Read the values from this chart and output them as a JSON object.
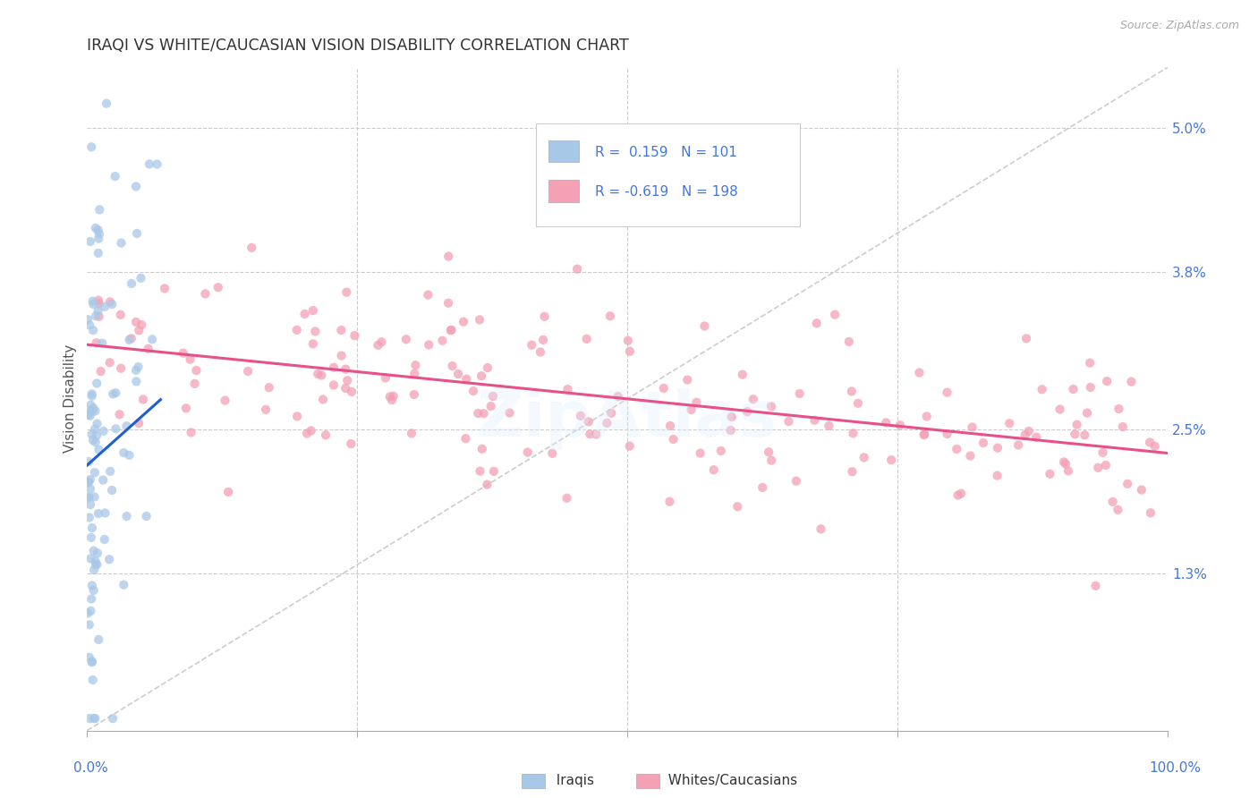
{
  "title": "IRAQI VS WHITE/CAUCASIAN VISION DISABILITY CORRELATION CHART",
  "source": "Source: ZipAtlas.com",
  "ylabel": "Vision Disability",
  "ytick_labels": [
    "1.3%",
    "2.5%",
    "3.8%",
    "5.0%"
  ],
  "ytick_values": [
    0.013,
    0.025,
    0.038,
    0.05
  ],
  "xlim": [
    0.0,
    1.0
  ],
  "ylim": [
    0.0,
    0.055
  ],
  "legend_label1": "Iraqis",
  "legend_label2": "Whites/Caucasians",
  "r1": 0.159,
  "n1": 101,
  "r2": -0.619,
  "n2": 198,
  "color_blue": "#A8C8E8",
  "color_pink": "#F4A0B5",
  "color_blue_line": "#1E60CC",
  "color_pink_line": "#E8508A",
  "color_diag": "#C0C0C0",
  "watermark": "ZipAtlas",
  "background_color": "#FFFFFF",
  "grid_color": "#CCCCCC",
  "title_color": "#333333",
  "axis_label_color": "#4477DD",
  "seed": 123
}
